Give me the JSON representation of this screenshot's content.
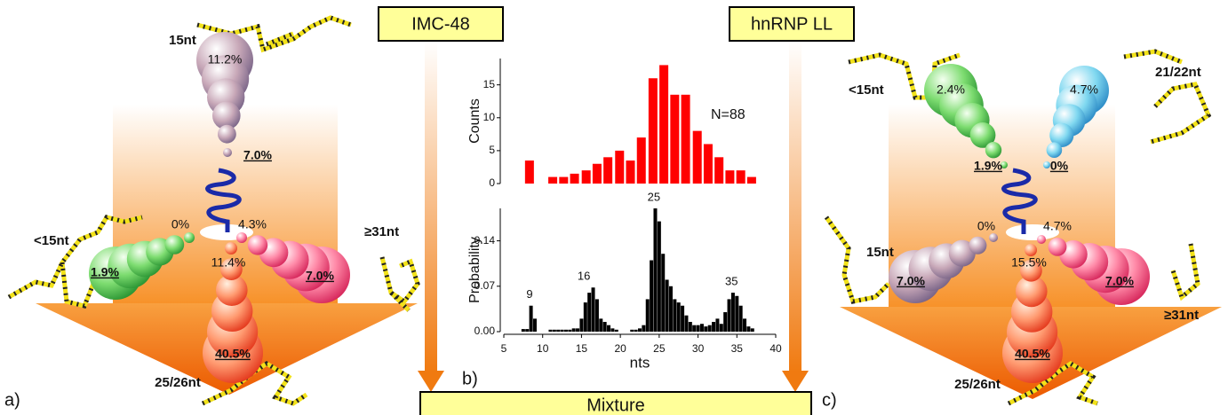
{
  "panel_a": {
    "label": "a)",
    "top": {
      "name": "15nt",
      "far": "11.2%",
      "near": "7.0%"
    },
    "left": {
      "name": "<15nt",
      "far": "1.9%",
      "near": "0%"
    },
    "right": {
      "name": "≥31nt",
      "far": "7.0%",
      "near": "4.3%"
    },
    "bottom": {
      "name": "25/26nt",
      "near": "11.4%",
      "far": "40.5%"
    }
  },
  "panel_b": {
    "label": "b)",
    "left_box": "IMC-48",
    "right_box": "hnRNP LL",
    "bottom_box": "Mixture"
  },
  "chart_data": [
    {
      "type": "bar",
      "ylabel": "Counts",
      "annotation": "N=88",
      "color": "#ff0000",
      "x": [
        8.3,
        11.3,
        12.7,
        14.1,
        15.6,
        17.0,
        18.4,
        19.9,
        21.3,
        22.7,
        24.2,
        25.6,
        27.0,
        28.4,
        29.9,
        31.3,
        32.7,
        34.1,
        35.5,
        36.9
      ],
      "values": [
        3.5,
        1,
        1,
        1.5,
        2,
        3,
        4,
        5,
        3.5,
        7,
        16,
        18,
        13.5,
        13.5,
        8,
        6,
        4,
        2,
        2,
        1
      ],
      "xlim": [
        5,
        40
      ],
      "ylim": [
        0,
        19
      ],
      "yticks": [
        0,
        5,
        10,
        15
      ]
    },
    {
      "type": "bar",
      "ylabel": "Probability",
      "xlabel": "nts",
      "color": "#000000",
      "x": [
        7.5,
        8,
        8.5,
        9,
        11,
        11.5,
        12,
        12.5,
        13,
        13.5,
        14,
        14.5,
        15,
        15.5,
        16,
        16.5,
        17,
        17.5,
        18,
        18.5,
        19,
        19.5,
        21.5,
        22,
        22.5,
        23,
        23.5,
        24,
        24.5,
        25,
        25.5,
        26,
        26.5,
        27,
        27.5,
        28,
        28.5,
        29,
        29.5,
        30,
        30.5,
        31,
        31.5,
        32,
        32.5,
        33,
        33.5,
        34,
        34.5,
        35,
        35.5,
        36,
        36.5,
        37
      ],
      "values": [
        0.004,
        0.004,
        0.04,
        0.02,
        0.003,
        0.003,
        0.003,
        0.003,
        0.003,
        0.003,
        0.005,
        0.005,
        0.02,
        0.045,
        0.06,
        0.068,
        0.05,
        0.02,
        0.015,
        0.01,
        0.005,
        0.003,
        0.003,
        0.003,
        0.005,
        0.01,
        0.05,
        0.11,
        0.19,
        0.17,
        0.12,
        0.08,
        0.07,
        0.05,
        0.045,
        0.04,
        0.025,
        0.015,
        0.01,
        0.01,
        0.012,
        0.008,
        0.01,
        0.015,
        0.02,
        0.012,
        0.03,
        0.05,
        0.06,
        0.055,
        0.04,
        0.02,
        0.008,
        0.005
      ],
      "xlim": [
        5,
        40
      ],
      "ylim": [
        0,
        0.19
      ],
      "yticks": [
        {
          "value": 0,
          "label": "0.00"
        },
        0.07,
        0.14
      ],
      "xticks": [
        5,
        10,
        15,
        20,
        25,
        30,
        35,
        40
      ],
      "peak_labels": [
        9,
        16,
        25,
        35
      ]
    }
  ],
  "panel_c": {
    "label": "c)",
    "top_left": {
      "name": "<15nt",
      "far": "2.4%",
      "near": "1.9%"
    },
    "top_right": {
      "name": "21/22nt",
      "far": "4.7%",
      "near": "0%"
    },
    "left": {
      "name": "15nt",
      "far": "7.0%",
      "near": "0%"
    },
    "right": {
      "name": "≥31nt",
      "far": "7.0%",
      "near": "4.7%"
    },
    "bottom": {
      "name": "25/26nt",
      "near": "15.5%",
      "far": "40.5%"
    }
  }
}
